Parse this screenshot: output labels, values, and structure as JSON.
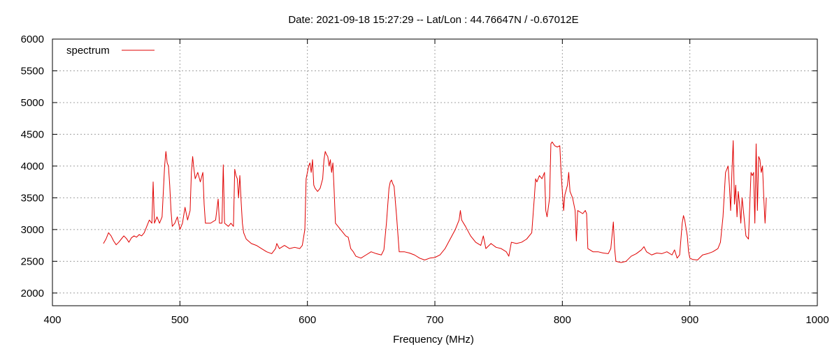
{
  "chart_data": {
    "type": "line",
    "title": "Date: 2021-09-18 15:27:29  --  Lat/Lon : 44.76647N / -0.67012E",
    "xlabel": "Frequency (MHz)",
    "ylabel": "",
    "xlim": [
      400,
      1000
    ],
    "ylim": [
      1800,
      6000
    ],
    "xticks": [
      400,
      500,
      600,
      700,
      800,
      900,
      1000
    ],
    "yticks": [
      2000,
      2500,
      3000,
      3500,
      4000,
      4500,
      5000,
      5500,
      6000
    ],
    "grid": true,
    "legend_position": "top-left",
    "series": [
      {
        "name": "spectrum",
        "color": "#e00000",
        "points": [
          [
            440,
            2780
          ],
          [
            442,
            2850
          ],
          [
            444,
            2950
          ],
          [
            446,
            2900
          ],
          [
            448,
            2820
          ],
          [
            450,
            2760
          ],
          [
            452,
            2800
          ],
          [
            454,
            2850
          ],
          [
            456,
            2900
          ],
          [
            458,
            2860
          ],
          [
            460,
            2800
          ],
          [
            462,
            2870
          ],
          [
            464,
            2900
          ],
          [
            466,
            2880
          ],
          [
            468,
            2920
          ],
          [
            470,
            2900
          ],
          [
            472,
            2950
          ],
          [
            474,
            3050
          ],
          [
            476,
            3150
          ],
          [
            478,
            3100
          ],
          [
            479,
            3750
          ],
          [
            480,
            3100
          ],
          [
            482,
            3200
          ],
          [
            484,
            3100
          ],
          [
            486,
            3200
          ],
          [
            487,
            3600
          ],
          [
            488,
            4000
          ],
          [
            489,
            4230
          ],
          [
            490,
            4050
          ],
          [
            491,
            4000
          ],
          [
            492,
            3700
          ],
          [
            493,
            3300
          ],
          [
            494,
            3050
          ],
          [
            496,
            3100
          ],
          [
            498,
            3200
          ],
          [
            500,
            3000
          ],
          [
            502,
            3100
          ],
          [
            504,
            3350
          ],
          [
            506,
            3150
          ],
          [
            508,
            3300
          ],
          [
            509,
            3900
          ],
          [
            510,
            4150
          ],
          [
            511,
            3950
          ],
          [
            512,
            3800
          ],
          [
            514,
            3900
          ],
          [
            516,
            3750
          ],
          [
            518,
            3900
          ],
          [
            519,
            3400
          ],
          [
            520,
            3100
          ],
          [
            524,
            3100
          ],
          [
            528,
            3150
          ],
          [
            530,
            3480
          ],
          [
            531,
            3100
          ],
          [
            533,
            3100
          ],
          [
            534,
            4020
          ],
          [
            535,
            3100
          ],
          [
            538,
            3050
          ],
          [
            540,
            3100
          ],
          [
            542,
            3050
          ],
          [
            543,
            3950
          ],
          [
            544,
            3850
          ],
          [
            545,
            3800
          ],
          [
            546,
            3500
          ],
          [
            547,
            3850
          ],
          [
            548,
            3450
          ],
          [
            549,
            3100
          ],
          [
            550,
            2950
          ],
          [
            552,
            2850
          ],
          [
            556,
            2780
          ],
          [
            560,
            2750
          ],
          [
            564,
            2700
          ],
          [
            568,
            2650
          ],
          [
            572,
            2620
          ],
          [
            575,
            2700
          ],
          [
            576,
            2780
          ],
          [
            578,
            2700
          ],
          [
            582,
            2750
          ],
          [
            586,
            2700
          ],
          [
            590,
            2720
          ],
          [
            594,
            2700
          ],
          [
            596,
            2750
          ],
          [
            598,
            3000
          ],
          [
            599,
            3800
          ],
          [
            600,
            3900
          ],
          [
            601,
            4000
          ],
          [
            602,
            4050
          ],
          [
            603,
            3900
          ],
          [
            604,
            4100
          ],
          [
            605,
            3700
          ],
          [
            606,
            3650
          ],
          [
            608,
            3600
          ],
          [
            610,
            3650
          ],
          [
            612,
            3800
          ],
          [
            613,
            4100
          ],
          [
            614,
            4230
          ],
          [
            615,
            4180
          ],
          [
            616,
            4150
          ],
          [
            617,
            4000
          ],
          [
            618,
            4100
          ],
          [
            619,
            3900
          ],
          [
            620,
            4050
          ],
          [
            621,
            3600
          ],
          [
            622,
            3100
          ],
          [
            624,
            3050
          ],
          [
            626,
            3000
          ],
          [
            630,
            2900
          ],
          [
            632,
            2880
          ],
          [
            634,
            2700
          ],
          [
            636,
            2650
          ],
          [
            638,
            2580
          ],
          [
            642,
            2550
          ],
          [
            646,
            2600
          ],
          [
            650,
            2650
          ],
          [
            654,
            2620
          ],
          [
            658,
            2600
          ],
          [
            660,
            2680
          ],
          [
            662,
            3100
          ],
          [
            664,
            3650
          ],
          [
            665,
            3750
          ],
          [
            666,
            3780
          ],
          [
            667,
            3720
          ],
          [
            668,
            3680
          ],
          [
            670,
            3200
          ],
          [
            672,
            2650
          ],
          [
            676,
            2650
          ],
          [
            680,
            2630
          ],
          [
            684,
            2600
          ],
          [
            688,
            2550
          ],
          [
            692,
            2520
          ],
          [
            696,
            2550
          ],
          [
            700,
            2560
          ],
          [
            704,
            2600
          ],
          [
            708,
            2700
          ],
          [
            712,
            2850
          ],
          [
            716,
            3000
          ],
          [
            719,
            3150
          ],
          [
            720,
            3300
          ],
          [
            721,
            3150
          ],
          [
            724,
            3050
          ],
          [
            728,
            2900
          ],
          [
            732,
            2800
          ],
          [
            736,
            2750
          ],
          [
            738,
            2900
          ],
          [
            740,
            2700
          ],
          [
            744,
            2780
          ],
          [
            748,
            2720
          ],
          [
            752,
            2700
          ],
          [
            756,
            2650
          ],
          [
            758,
            2580
          ],
          [
            760,
            2800
          ],
          [
            764,
            2780
          ],
          [
            768,
            2800
          ],
          [
            772,
            2850
          ],
          [
            776,
            2950
          ],
          [
            778,
            3500
          ],
          [
            779,
            3800
          ],
          [
            780,
            3750
          ],
          [
            782,
            3850
          ],
          [
            784,
            3800
          ],
          [
            786,
            3900
          ],
          [
            787,
            3300
          ],
          [
            788,
            3200
          ],
          [
            790,
            3500
          ],
          [
            791,
            4350
          ],
          [
            792,
            4380
          ],
          [
            794,
            4320
          ],
          [
            796,
            4300
          ],
          [
            798,
            4320
          ],
          [
            799,
            3900
          ],
          [
            800,
            3600
          ],
          [
            801,
            3300
          ],
          [
            802,
            3550
          ],
          [
            804,
            3700
          ],
          [
            805,
            3900
          ],
          [
            806,
            3600
          ],
          [
            808,
            3500
          ],
          [
            810,
            3300
          ],
          [
            811,
            2820
          ],
          [
            812,
            3300
          ],
          [
            816,
            3250
          ],
          [
            818,
            3300
          ],
          [
            819,
            3250
          ],
          [
            820,
            2700
          ],
          [
            824,
            2650
          ],
          [
            828,
            2650
          ],
          [
            832,
            2630
          ],
          [
            836,
            2620
          ],
          [
            838,
            2700
          ],
          [
            840,
            3120
          ],
          [
            841,
            2700
          ],
          [
            842,
            2500
          ],
          [
            846,
            2480
          ],
          [
            850,
            2500
          ],
          [
            854,
            2580
          ],
          [
            858,
            2620
          ],
          [
            862,
            2680
          ],
          [
            864,
            2730
          ],
          [
            866,
            2650
          ],
          [
            870,
            2600
          ],
          [
            874,
            2630
          ],
          [
            878,
            2620
          ],
          [
            882,
            2650
          ],
          [
            886,
            2600
          ],
          [
            888,
            2680
          ],
          [
            890,
            2550
          ],
          [
            892,
            2600
          ],
          [
            894,
            3100
          ],
          [
            895,
            3220
          ],
          [
            896,
            3150
          ],
          [
            898,
            2900
          ],
          [
            899,
            2650
          ],
          [
            900,
            2550
          ],
          [
            902,
            2530
          ],
          [
            906,
            2520
          ],
          [
            910,
            2600
          ],
          [
            914,
            2620
          ],
          [
            918,
            2650
          ],
          [
            922,
            2700
          ],
          [
            924,
            2800
          ],
          [
            926,
            3200
          ],
          [
            928,
            3900
          ],
          [
            930,
            4000
          ],
          [
            931,
            3700
          ],
          [
            932,
            3300
          ],
          [
            933,
            3900
          ],
          [
            934,
            4400
          ],
          [
            935,
            3400
          ],
          [
            936,
            3700
          ],
          [
            937,
            3200
          ],
          [
            938,
            3600
          ],
          [
            939,
            3400
          ],
          [
            940,
            3100
          ],
          [
            941,
            3500
          ],
          [
            942,
            3300
          ],
          [
            944,
            2900
          ],
          [
            946,
            2850
          ],
          [
            948,
            3900
          ],
          [
            949,
            3850
          ],
          [
            950,
            3900
          ],
          [
            951,
            3100
          ],
          [
            952,
            4350
          ],
          [
            953,
            3300
          ],
          [
            954,
            4150
          ],
          [
            955,
            4100
          ],
          [
            956,
            3900
          ],
          [
            957,
            4000
          ],
          [
            958,
            3500
          ],
          [
            959,
            3100
          ],
          [
            960,
            3500
          ]
        ]
      }
    ]
  }
}
